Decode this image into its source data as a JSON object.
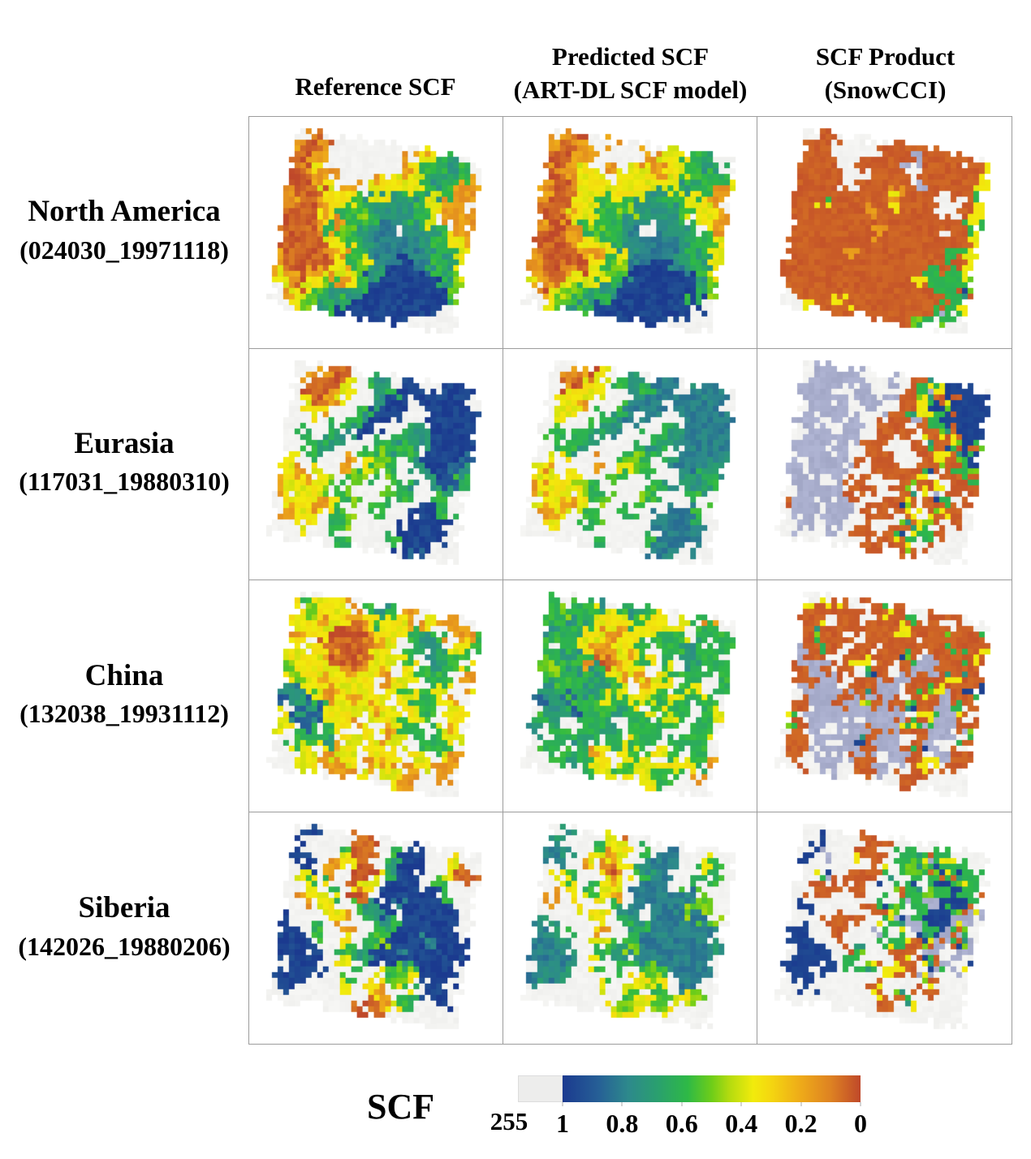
{
  "figure": {
    "column_headers": [
      {
        "line1": "Reference SCF",
        "line2": ""
      },
      {
        "line1": "Predicted SCF",
        "line2": "(ART-DL SCF model)"
      },
      {
        "line1": "SCF Product",
        "line2": "(SnowCCI)"
      }
    ],
    "rows": [
      {
        "region": "North America",
        "scene_id": "(024030_19971118)"
      },
      {
        "region": "Eurasia",
        "scene_id": "(117031_19880310)"
      },
      {
        "region": "China",
        "scene_id": "(132038_19931112)"
      },
      {
        "region": "Siberia",
        "scene_id": "(142026_19880206)"
      }
    ]
  },
  "colorbar": {
    "title": "SCF",
    "nodata_label": "255",
    "nodata_color": "#ededec",
    "tick_labels": [
      "1",
      "0.8",
      "0.6",
      "0.4",
      "0.2",
      "0"
    ],
    "tick_positions_pct": [
      0,
      20,
      40,
      60,
      80,
      100
    ]
  },
  "palette": {
    "nodata_white": "#f2f2f0",
    "unclassified_lavender": "#a9aecd",
    "grid_line": "#9c9c9c",
    "scf_colormap": [
      {
        "v": 1.0,
        "c": "#1b3a8f"
      },
      {
        "v": 0.88,
        "c": "#265f96"
      },
      {
        "v": 0.78,
        "c": "#2d898c"
      },
      {
        "v": 0.68,
        "c": "#2aa06e"
      },
      {
        "v": 0.58,
        "c": "#2eb946"
      },
      {
        "v": 0.5,
        "c": "#6ecd19"
      },
      {
        "v": 0.44,
        "c": "#b4db0f"
      },
      {
        "v": 0.36,
        "c": "#f2eb0c"
      },
      {
        "v": 0.3,
        "c": "#f4d610"
      },
      {
        "v": 0.2,
        "c": "#eeaa19"
      },
      {
        "v": 0.1,
        "c": "#de8222"
      },
      {
        "v": 0.0,
        "c": "#bf482a"
      }
    ],
    "class_values": {
      "B": 0.97,
      "b": 0.88,
      "T": 0.8,
      "t": 0.72,
      "g": 0.6,
      "G": 0.5,
      "y": 0.36,
      "Y": 0.28,
      "o": 0.16,
      "O": 0.04
    }
  },
  "map_panels": [
    {
      "region": "North America",
      "product": "Reference SCF",
      "rotation_deg": 9,
      "seed": 101,
      "value_jitter": 0.1,
      "sketch": [
        "WoOWWWWWWWoygtWW",
        "oOoWWWWWWoyggtgW",
        "OOoWWWWWWoygtggo",
        "OoyoWWWoyyygtgoo",
        "OOoyWoWyytggyooW",
        "oOOyyygttttgyooo",
        "oOOoygGgtttgyWoo",
        "OOOyoggtTWTttgyo",
        "OOOogGgtTTTTtggy",
        "OOOOyygtTTTTtgty",
        "OOOOoogyTTBBTggy",
        "oOOOOygGtBBBBBtG",
        "oOOoyoygBBBBBBgG",
        "yoOyGgttBBBBBBBW",
        "WoyGgtgBBBBBBBWW",
        "WWyGtgBBBBBBWWWW"
      ]
    },
    {
      "region": "North America",
      "product": "Predicted SCF (ART-DL SCF model)",
      "rotation_deg": 9,
      "seed": 202,
      "value_jitter": 0.1,
      "sketch": [
        "WoOWWoWWWoyygtWW",
        "oOooWWWWoyyggtgW",
        "OOooWoWyyoyygggy",
        "OooyyWyyyyygtgoo",
        "OOoyyyyyytggyyoW",
        "oOOyygygttttgyyo",
        "oOOyyggGttttgWyo",
        "OOoyyggtTWTttggy",
        "oOOogGgtTTTTtggy",
        "OOOoyygttTTTtgty",
        "OOOOoogyTTBBTggy",
        "oOOOOygGtBBBBBtG",
        "oOOoyyygBBBBBBgG",
        "yoOyGgttBBBBBBBW",
        "WoyGgtgBBBBBBBWW",
        "WWyGtgBBBBBBWWWW"
      ]
    },
    {
      "region": "North America",
      "product": "SCF Product (SnowCCI)",
      "rotation_deg": 9,
      "seed": 303,
      "value_jitter": 0.04,
      "sketch": [
        "WOOWWWWOOOOOOOWW",
        "OOOWWWOOOLOOOOOy",
        "OOOWWOOOOWOOOOOy",
        "OOOOWWOOOOLOOOOg",
        "OOOOWOOOoOOOWWOy",
        "OOOOOOOOyOOOWWOy",
        "OOmOOOoOOOOOOOOg",
        "OOOOOOOOOOOOOWOy",
        "OOOOOOOoOOOOOOgy",
        "OOOOOOOOOOOOOgOy",
        "OOOOOoOOOOOOgOgy",
        "OOOOOOOOOOOygggG",
        "OOOOOOOOOOOOOggm",
        "OOOOOOOOOOOOOOgy",
        "WOOOOyOOOOOOOmgW",
        "WWyOOOOOOOOGgWWW"
      ]
    },
    {
      "region": "Eurasia",
      "product": "Reference SCF",
      "rotation_deg": 9,
      "seed": 404,
      "value_jitter": 0.1,
      "sketch": [
        "WWoOOWgtWBBWbBBW",
        "WoOOyWgtgBBBBBBW",
        "WOOoyWWtBBWBBBBB",
        "WyOoWWgBBBWWBBBB",
        "WyyWWgtBWWgtBBBB",
        "WWWWgtBWWgttBBBB",
        "WgWgtWWWgtgWBBBb",
        "WWgtWWWgGgWtBBbt",
        "WygWWoWyGgWWtbbg",
        "yoWyWWGgWWgtWttW",
        "yyoyGgWWWGgWWgWW",
        "oyyyWgGWWgWWBBgW",
        "WyyoygWWgWWBBBBW",
        "WoyyWgGWWWWBBBBW",
        "WWyWWgWWWWgBBBWW",
        "WWWWWWgWWWWBbWWW"
      ]
    },
    {
      "region": "Eurasia",
      "product": "Predicted SCF (ART-DL SCF model)",
      "rotation_deg": 9,
      "seed": 505,
      "value_jitter": 0.1,
      "sketch": [
        "WWoOyWgtWTTWtTTW",
        "WoOyyWgtgTTTTTTW",
        "WOyyyWWtTTWTTTTT",
        "WyyoWWgTTTWWTTTT",
        "WyyWWgtTWWgtTTTT",
        "WWWWgtTWWgttTTTT",
        "WgWgtWWWgtgWTTTt",
        "WWgtWWWgGgWtTTtt",
        "WyyWWoWyGgWWttgg",
        "yoWyWWGgWWgtWttW",
        "yyyyGgWWWGgWWgWW",
        "oyyyWgGWWgWWTTgW",
        "WyyoygWWgWWTTTTW",
        "WooyWgGWWWWTTTTW",
        "WWyWWgWWWWgTTTWW",
        "WWWWWWgWWWWTtWWW"
      ]
    },
    {
      "region": "Eurasia",
      "product": "SCF Product (SnowCCI)",
      "rotation_deg": 9,
      "seed": 606,
      "value_jitter": 0.04,
      "sketch": [
        "WLLLLWWLWOmyBBBW",
        "WLLLLLWLWOmOmBBB",
        "LLLWWLLWOOyBmBBB",
        "LLLLWLLWOmOgBOBB",
        "WLLLLWWOOWOOmmBB",
        "LLWWLLWOOOWmOmBm",
        "WLLLLWOOWWOOyOmB",
        "LLLWLWOOOWWOmOgm",
        "WLLLLOWOOOOmWOOm",
        "LWLLWOOWWOmOyWOO",
        "LLLWLWOOWOOWmgWO",
        "WLLLLOWWOOmWOmOW",
        "OLLWLLWOOWmymWOW",
        "WLLLLWWOWOOmgOWW",
        "WWLWLWOOWOmWOWWW",
        "WLWWWWWOOWWOWWWW"
      ]
    },
    {
      "region": "China",
      "product": "Reference SCF",
      "rotation_deg": 9,
      "seed": 707,
      "value_jitter": 0.1,
      "sketch": [
        "gWyyoWgtgoWyooWW",
        "yGyyyoygyyoyWoog",
        "yyoyOOoyyygtgWyg",
        "oyyOOOOoyWggtggW",
        "yWyOOOOyyygWtggy",
        "yyyoOOoyyWygggWo",
        "GyyyyoyyoyyWgyWy",
        "yGyoyyyyWygygyoW",
        "tbyyoyoyyWyggWyy",
        "btbgyyyyoyWygWoW",
        "WbtbyyoWyyggWgyy",
        "ytbWgyWyWoyWgggW",
        "yWggtWyyyyWyyWyo",
        "WgyWyoyWyoyWyyoW",
        "WWyyoyyWoyyooWoW",
        "WWWyWooyWWyoWWWW"
      ]
    },
    {
      "region": "China",
      "product": "Predicted SCF (ART-DL SCF model)",
      "rotation_deg": 9,
      "seed": 808,
      "value_jitter": 0.1,
      "sketch": [
        "gWggtWgtgyWygoWW",
        "gGggyyygyyyyWggg",
        "ggtgyyoyygggtWgg",
        "tggyyoyygWggtggW",
        "gWgyooyogygWtggg",
        "ggtgoOoyyWygggWg",
        "GggttgyooyyWgyWg",
        "gGgtgtgyWygygggW",
        "ttggtgygyWgggWgy",
        "btbggggtgyWygWgW",
        "WttbggtWggggWggy",
        "gttWggtgWggWgggW",
        "tWggtWggygWygWgo",
        "WggWgoyWygyWyygW",
        "WWggtgyWgyyggWoW",
        "WWWgWggyWWygWWWW"
      ]
    },
    {
      "region": "China",
      "product": "SCF Product (SnowCCI)",
      "rotation_deg": 9,
      "seed": 909,
      "value_jitter": 0.04,
      "sketch": [
        "WWyOWOOmOWWOOWWW",
        "yOOOOWOOOmOOWOOg",
        "OOWOOOOOyOOOmOOO",
        "OmOOWWOOOOWOOgOy",
        "OOgOOOWOOmOLOOmO",
        "LOOWOyOOWOLLOmOO",
        "OLLOOWmOLLOOyOOm",
        "mOLLWOOLLWOmOLOO",
        "OLLLLOmLOOmOLLmW",
        "WOLLOLLOLLWygLOO",
        "OWLLLLWLLOmOLLWm",
        "mOLLWLLOLLWOLWOW",
        "WOWLLLmOLLOmWLOO",
        "OOLLWLLOWLLOyWOW",
        "WOWLLWOOLWWOOWWW",
        "WWOWLWWOWWOOWWWW"
      ]
    },
    {
      "region": "Siberia",
      "product": "Reference SCF",
      "rotation_deg": 9,
      "seed": 1010,
      "value_jitter": 0.1,
      "sketch": [
        "WBWWWOOWWWBWWWWW",
        "BWWWgOOWgBBWWyOW",
        "BBWWyOOWtBBWWyOO",
        "WBWoWOOygBBWgWWW",
        "WygWWOyWBBBBBgWW",
        "WWyWgOOWBTBBBBWW",
        "WoWyWWgtBWBBBBBW",
        "WWWWyoWgtgBBBBBW",
        "BWWWWoWWgBBBTBBB",
        "BBWgWyWgGBBBBBBB",
        "BBBWWggtBBTBBBBW",
        "BBBBWyWgWgGgBBBW",
        "WBBBWWgWWyGyWBWW",
        "BBBWWWyWyoWgWBBW",
        "WBWWWWWWOoygWWWW",
        "WWWWWWWOOOWWWWWW"
      ]
    },
    {
      "region": "Siberia",
      "product": "Predicted SCF (ART-DL SCF model)",
      "rotation_deg": 9,
      "seed": 1111,
      "value_jitter": 0.1,
      "sketch": [
        "WtWWWyOWWWTWWWWW",
        "tWWWgyyWgTTWWygW",
        "TtWWyoyWtTTWWggW",
        "WTWoWOoygTTWgWWW",
        "WygWWyyWTTTTTGGW",
        "WWyWgyoWTTTTGGWW",
        "WoWyWWgtTWTTTTGW",
        "WWWWyyWgtgTTTTTW",
        "tWWWWoWWgTTTTTTt",
        "TtWgWyWgGTTTTTTT",
        "TTtWWggtTTTTTTTW",
        "TTTtWyWgWgGgTTTW",
        "WTTtWWgWWyGyWTWW",
        "TTtWWWyWygWgWyGW",
        "WtWWWWWWgyyGyWWW",
        "WWWWWWWyGyWWWWWW"
      ]
    },
    {
      "region": "Siberia",
      "product": "SCF Product (SnowCCI)",
      "rotation_deg": 9,
      "seed": 1212,
      "value_jitter": 0.04,
      "sketch": [
        "WWWWWOOWWWWgWWWW",
        "WBWWWOOWggmgygWW",
        "WWLWyWOWgGgmgmgW",
        "BWWWWOOmWgWgBmgm",
        "WWmWOOWWmgmGgBgW",
        "WOOWWOWgWmgLBBmL",
        "WWWWWWOOmWgBBmLW",
        "WBWWOOWWgmLgBLmW",
        "WWWOOWWmWgWmLOmL",
        "BBWWOWWWgmOmLWLW",
        "BBBWWWmWWOOWmLWm",
        "WBBBWgWmWyOWLWLW",
        "BBWBWWgWmWWOmWWW",
        "WBBWWWWOyWmWOWWW",
        "WWBWWWWWOOWyWWWW",
        "WWWWWWWWWOWWWWWW"
      ]
    }
  ]
}
